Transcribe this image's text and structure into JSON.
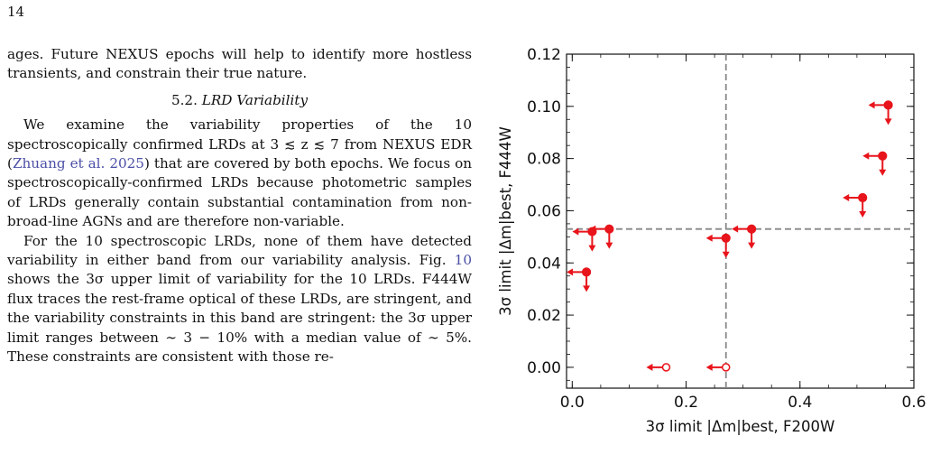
{
  "page": {
    "number": "14"
  },
  "body": {
    "para_top": "ages. Future NEXUS epochs will help to identify more hostless transients, and constrain their true nature.",
    "section": {
      "number": "5.2.",
      "title": "LRD Variability"
    },
    "para1": {
      "t1": "We examine the variability properties of the 10 spectroscopically confirmed LRDs at 3 ≲ z ≲ 7 from NEXUS EDR (",
      "cite": "Zhuang et al. 2025",
      "t2": ") that are covered by both epochs. We focus on spectroscopically-confirmed LRDs because photometric samples of LRDs generally contain substantial contamination from non-broad-line AGNs and are therefore non-variable."
    },
    "para2": {
      "t1": "For the 10 spectroscopic LRDs, none of them have detected variability in either band from our variability analysis. Fig. ",
      "fig_ref": "10",
      "t2": " shows the 3σ upper limit of variability for the 10 LRDs. F444W flux traces the rest-frame optical of these LRDs, are stringent, and the variability constraints in this band are stringent: the 3σ upper limit ranges between ∼ 3 − 10% with a median value of ∼ 5%. These constraints are consistent with those re-"
    }
  },
  "chart_data": {
    "type": "scatter",
    "xlabel": "3σ limit |Δm|best, F200W",
    "ylabel": "3σ limit |Δm|best, F444W",
    "xlim": [
      -0.01,
      0.6
    ],
    "ylim": [
      -0.008,
      0.12
    ],
    "x_ticks": [
      "0.0",
      "0.2",
      "0.4",
      "0.6"
    ],
    "y_ticks": [
      "0.00",
      "0.02",
      "0.04",
      "0.06",
      "0.08",
      "0.10",
      "0.12"
    ],
    "reference_lines": {
      "vertical_x": 0.27,
      "horizontal_y": 0.053
    },
    "marker_color": "#e8141b",
    "points": [
      {
        "x": 0.555,
        "y": 0.1005,
        "filled": true
      },
      {
        "x": 0.545,
        "y": 0.081,
        "filled": true
      },
      {
        "x": 0.51,
        "y": 0.065,
        "filled": true
      },
      {
        "x": 0.315,
        "y": 0.053,
        "filled": true
      },
      {
        "x": 0.27,
        "y": 0.0495,
        "filled": true
      },
      {
        "x": 0.065,
        "y": 0.053,
        "filled": true
      },
      {
        "x": 0.035,
        "y": 0.052,
        "filled": true
      },
      {
        "x": 0.025,
        "y": 0.0365,
        "filled": true
      },
      {
        "x": 0.165,
        "y": 0.0,
        "filled": false
      },
      {
        "x": 0.27,
        "y": 0.0,
        "filled": false
      }
    ]
  }
}
